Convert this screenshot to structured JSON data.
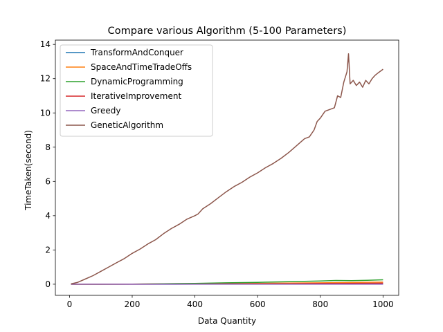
{
  "chart_data": {
    "type": "line",
    "title": "Compare various Algorithm (5-100 Parameters)",
    "xlabel": "Data Quantity",
    "ylabel": "TimeTaken(second)",
    "xlim": [
      -45,
      1050
    ],
    "ylim": [
      -0.65,
      14.25
    ],
    "xticks": [
      0,
      200,
      400,
      600,
      800,
      1000
    ],
    "yticks": [
      0,
      2,
      4,
      6,
      8,
      10,
      12,
      14
    ],
    "grid": false,
    "legend_position": "upper-left",
    "series": [
      {
        "name": "TransformAndConquer",
        "color": "#1f77b4",
        "x": [
          5,
          100,
          200,
          300,
          400,
          500,
          600,
          700,
          800,
          900,
          1000
        ],
        "y": [
          0.0,
          0.0,
          0.0,
          0.0,
          0.01,
          0.01,
          0.01,
          0.01,
          0.01,
          0.01,
          0.02
        ]
      },
      {
        "name": "SpaceAndTimeTradeOffs",
        "color": "#ff7f0e",
        "x": [
          5,
          100,
          200,
          300,
          400,
          500,
          600,
          700,
          800,
          900,
          1000
        ],
        "y": [
          0.0,
          0.0,
          0.01,
          0.02,
          0.03,
          0.04,
          0.05,
          0.07,
          0.08,
          0.1,
          0.12
        ]
      },
      {
        "name": "DynamicProgramming",
        "color": "#2ca02c",
        "x": [
          5,
          100,
          200,
          300,
          400,
          500,
          600,
          700,
          800,
          850,
          900,
          950,
          1000
        ],
        "y": [
          0.0,
          0.0,
          0.01,
          0.03,
          0.05,
          0.08,
          0.11,
          0.15,
          0.19,
          0.22,
          0.21,
          0.23,
          0.26
        ]
      },
      {
        "name": "IterativeImprovement",
        "color": "#d62728",
        "x": [
          5,
          100,
          200,
          300,
          400,
          500,
          600,
          700,
          800,
          900,
          1000
        ],
        "y": [
          0.0,
          0.0,
          0.0,
          0.01,
          0.01,
          0.02,
          0.02,
          0.03,
          0.04,
          0.05,
          0.06
        ]
      },
      {
        "name": "Greedy",
        "color": "#9467bd",
        "x": [
          5,
          100,
          200,
          300,
          400,
          500,
          600,
          700,
          800,
          900,
          1000
        ],
        "y": [
          0.0,
          0.0,
          0.0,
          0.0,
          0.0,
          0.0,
          0.0,
          0.0,
          0.0,
          0.0,
          0.0
        ]
      },
      {
        "name": "GeneticAlgorithm",
        "color": "#8c564b",
        "x": [
          5,
          25,
          50,
          75,
          100,
          125,
          150,
          175,
          200,
          225,
          250,
          275,
          300,
          325,
          350,
          375,
          400,
          410,
          425,
          450,
          475,
          500,
          525,
          550,
          575,
          600,
          625,
          650,
          675,
          700,
          725,
          750,
          765,
          780,
          790,
          800,
          815,
          830,
          845,
          855,
          865,
          875,
          885,
          890,
          895,
          905,
          915,
          925,
          935,
          945,
          955,
          965,
          975,
          985,
          1000
        ],
        "y": [
          0.02,
          0.1,
          0.3,
          0.5,
          0.75,
          1.0,
          1.25,
          1.5,
          1.8,
          2.05,
          2.35,
          2.6,
          2.95,
          3.25,
          3.5,
          3.8,
          4.0,
          4.1,
          4.4,
          4.7,
          5.05,
          5.4,
          5.7,
          5.95,
          6.25,
          6.5,
          6.8,
          7.05,
          7.35,
          7.7,
          8.1,
          8.5,
          8.6,
          9.0,
          9.5,
          9.7,
          10.1,
          10.2,
          10.3,
          11.0,
          10.9,
          11.8,
          12.4,
          13.45,
          11.7,
          11.9,
          11.6,
          11.8,
          11.5,
          11.9,
          11.7,
          12.0,
          12.2,
          12.35,
          12.55
        ]
      }
    ]
  }
}
